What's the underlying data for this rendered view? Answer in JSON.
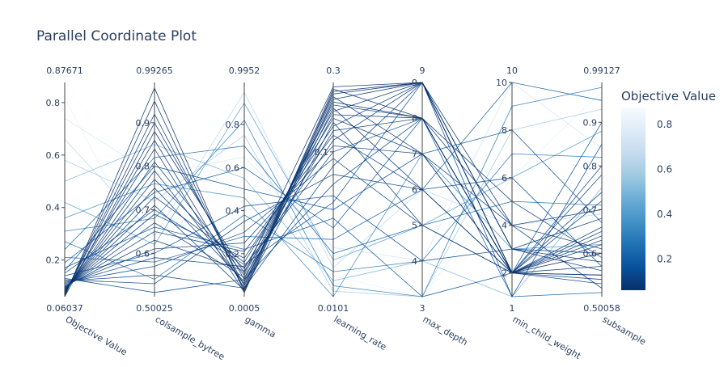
{
  "chart_data": {
    "type": "parallel_coordinates",
    "title": "Parallel Coordinate Plot",
    "dimensions": [
      {
        "label": "Objective Value",
        "min": 0.06037,
        "max": 0.87671,
        "range_labels": [
          "0.06037",
          "0.87671"
        ],
        "ticks": [
          0.2,
          0.4,
          0.6,
          0.8
        ],
        "tick_labels": [
          "0.2",
          "0.4",
          "0.6",
          "0.8"
        ],
        "scale": "linear"
      },
      {
        "label": "colsample_bytree",
        "min": 0.50025,
        "max": 0.99265,
        "range_labels": [
          "0.50025",
          "0.99265"
        ],
        "ticks": [
          0.6,
          0.7,
          0.8,
          0.9
        ],
        "tick_labels": [
          "0.6",
          "0.7",
          "0.8",
          "0.9"
        ],
        "scale": "linear"
      },
      {
        "label": "gamma",
        "min": 0.0005,
        "max": 0.9952,
        "range_labels": [
          "0.0005",
          "0.9952"
        ],
        "ticks": [
          0.2,
          0.4,
          0.6,
          0.8
        ],
        "tick_labels": [
          "0.2",
          "0.4",
          "0.6",
          "0.8"
        ],
        "scale": "linear"
      },
      {
        "label": "learning_rate",
        "min": 0.0101,
        "max": 0.3,
        "range_labels": [
          "0.0101",
          "0.3"
        ],
        "ticks": [
          0.1
        ],
        "tick_labels": [
          "0.1"
        ],
        "scale": "log"
      },
      {
        "label": "max_depth",
        "min": 3,
        "max": 9,
        "range_labels": [
          "3",
          "9"
        ],
        "ticks": [
          4,
          5,
          6,
          7,
          8,
          9
        ],
        "tick_labels": [
          "4",
          "5",
          "6",
          "7",
          "8",
          "9"
        ],
        "scale": "linear"
      },
      {
        "label": "min_child_weight",
        "min": 1,
        "max": 10,
        "range_labels": [
          "1",
          "10"
        ],
        "ticks": [
          2,
          4,
          6,
          8,
          10
        ],
        "tick_labels": [
          "2",
          "4",
          "6",
          "8",
          "10"
        ],
        "scale": "linear"
      },
      {
        "label": "subsample",
        "min": 0.50058,
        "max": 0.99127,
        "range_labels": [
          "0.50058",
          "0.99127"
        ],
        "ticks": [
          0.6,
          0.7,
          0.8,
          0.9
        ],
        "tick_labels": [
          "0.6",
          "0.7",
          "0.8",
          "0.9"
        ],
        "scale": "linear"
      }
    ],
    "lines": [
      [
        0.06037,
        0.88,
        0.11,
        0.28,
        9,
        2,
        0.55
      ],
      [
        0.062,
        0.98,
        0.02,
        0.26,
        9,
        2,
        0.6
      ],
      [
        0.065,
        0.95,
        0.03,
        0.27,
        8,
        2,
        0.62
      ],
      [
        0.068,
        0.92,
        0.05,
        0.25,
        9,
        3,
        0.58
      ],
      [
        0.07,
        0.9,
        0.08,
        0.22,
        8,
        2,
        0.57
      ],
      [
        0.072,
        0.86,
        0.04,
        0.24,
        7,
        2,
        0.63
      ],
      [
        0.075,
        0.84,
        0.02,
        0.23,
        9,
        4,
        0.61
      ],
      [
        0.078,
        0.81,
        0.1,
        0.21,
        8,
        2,
        0.65
      ],
      [
        0.08,
        0.79,
        0.06,
        0.2,
        6,
        2,
        0.55
      ],
      [
        0.082,
        0.77,
        0.13,
        0.19,
        9,
        3,
        0.68
      ],
      [
        0.085,
        0.75,
        0.07,
        0.18,
        8,
        2,
        0.54
      ],
      [
        0.087,
        0.73,
        0.16,
        0.17,
        7,
        4,
        0.7
      ],
      [
        0.09,
        0.71,
        0.03,
        0.16,
        5,
        2,
        0.53
      ],
      [
        0.092,
        0.69,
        0.18,
        0.15,
        9,
        2,
        0.72
      ],
      [
        0.095,
        0.67,
        0.09,
        0.14,
        8,
        5,
        0.59
      ],
      [
        0.098,
        0.65,
        0.21,
        0.13,
        6,
        2,
        0.66
      ],
      [
        0.1,
        0.63,
        0.12,
        0.12,
        9,
        3,
        0.56
      ],
      [
        0.105,
        0.61,
        0.25,
        0.11,
        7,
        2,
        0.74
      ],
      [
        0.11,
        0.59,
        0.14,
        0.1,
        8,
        4,
        0.52
      ],
      [
        0.115,
        0.57,
        0.3,
        0.09,
        5,
        2,
        0.78
      ],
      [
        0.12,
        0.55,
        0.04,
        0.08,
        9,
        2,
        0.64
      ],
      [
        0.125,
        0.53,
        0.35,
        0.07,
        6,
        6,
        0.57
      ],
      [
        0.13,
        0.51,
        0.08,
        0.06,
        8,
        2,
        0.8
      ],
      [
        0.14,
        0.6,
        0.42,
        0.05,
        4,
        3,
        0.6
      ],
      [
        0.15,
        0.7,
        0.15,
        0.045,
        9,
        1,
        0.85
      ],
      [
        0.16,
        0.8,
        0.5,
        0.04,
        7,
        8,
        0.67
      ],
      [
        0.17,
        0.66,
        0.22,
        0.035,
        3,
        2,
        0.9
      ],
      [
        0.19,
        0.74,
        0.6,
        0.03,
        8,
        1,
        0.51
      ],
      [
        0.21,
        0.58,
        0.28,
        0.025,
        6,
        10,
        0.95
      ],
      [
        0.24,
        0.82,
        0.7,
        0.02,
        5,
        5,
        0.71
      ],
      [
        0.27,
        0.54,
        0.38,
        0.015,
        4,
        7,
        0.82
      ],
      [
        0.31,
        0.68,
        0.82,
        0.012,
        3,
        9,
        0.98
      ],
      [
        0.36,
        0.76,
        0.46,
        0.0101,
        7,
        3,
        0.62
      ],
      [
        0.42,
        0.62,
        0.9,
        0.018,
        5,
        6,
        0.88
      ],
      [
        0.5,
        0.85,
        0.55,
        0.013,
        4,
        1,
        0.75
      ],
      [
        0.58,
        0.72,
        0.75,
        0.011,
        3,
        8,
        0.93
      ],
      [
        0.66,
        0.64,
        0.95,
        0.016,
        6,
        4,
        0.69
      ],
      [
        0.74,
        0.78,
        0.65,
        0.022,
        4,
        10,
        0.84
      ],
      [
        0.82,
        0.56,
        0.85,
        0.014,
        3,
        6,
        0.97
      ],
      [
        0.87671,
        0.7,
        0.99,
        0.011,
        5,
        9,
        0.79
      ]
    ],
    "colorbar": {
      "title": "Objective Value",
      "ticks": [
        0.2,
        0.4,
        0.6,
        0.8
      ],
      "tick_labels": [
        "0.2",
        "0.4",
        "0.6",
        "0.8"
      ],
      "min": 0.06037,
      "max": 0.87671,
      "colorscale": [
        "#08306b",
        "#08519c",
        "#2171b5",
        "#4292c6",
        "#6baed6",
        "#9ecae1",
        "#c6dbef",
        "#deebf7",
        "#f7fbff"
      ]
    }
  }
}
